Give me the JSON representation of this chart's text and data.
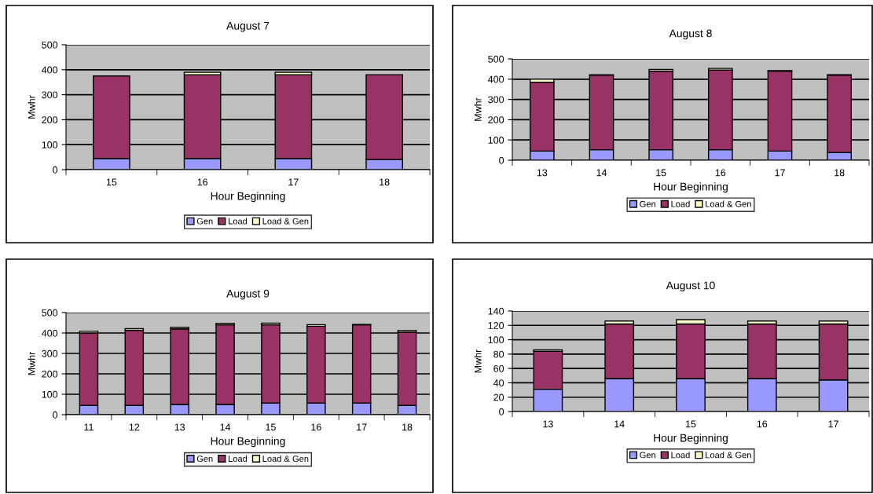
{
  "chart_data": [
    {
      "type": "bar",
      "title": "August 7",
      "xlabel": "Hour Beginning",
      "ylabel": "Mwhr",
      "categories": [
        "15",
        "16",
        "17",
        "18"
      ],
      "stacked": true,
      "ylim": [
        0,
        500
      ],
      "yticks": [
        0,
        100,
        200,
        300,
        400,
        500
      ],
      "grid": "y",
      "legend": "bottom",
      "series": [
        {
          "name": "Gen",
          "color": "#9999ff",
          "values": [
            45,
            45,
            45,
            40
          ]
        },
        {
          "name": "Load",
          "color": "#993366",
          "values": [
            330,
            335,
            335,
            340
          ]
        },
        {
          "name": "Load & Gen",
          "color": "#ffffcc",
          "values": [
            null,
            10,
            10,
            null
          ]
        }
      ]
    },
    {
      "type": "bar",
      "title": "August 8",
      "xlabel": "Hour Beginning",
      "ylabel": "Mwhr",
      "categories": [
        "13",
        "14",
        "15",
        "16",
        "17",
        "18"
      ],
      "stacked": true,
      "ylim": [
        0,
        500
      ],
      "yticks": [
        0,
        100,
        200,
        300,
        400,
        500
      ],
      "grid": "y",
      "legend": "bottom",
      "series": [
        {
          "name": "Gen",
          "color": "#9999ff",
          "values": [
            45,
            52,
            52,
            52,
            45,
            38
          ]
        },
        {
          "name": "Load",
          "color": "#993366",
          "values": [
            340,
            368,
            388,
            393,
            395,
            382
          ]
        },
        {
          "name": "Load & Gen",
          "color": "#ffffcc",
          "values": [
            15,
            2,
            8,
            8,
            2,
            2
          ]
        }
      ]
    },
    {
      "type": "bar",
      "title": "August 9",
      "xlabel": "Hour Beginning",
      "ylabel": "Mwhr",
      "categories": [
        "11",
        "12",
        "13",
        "14",
        "15",
        "16",
        "17",
        "18"
      ],
      "stacked": true,
      "ylim": [
        0,
        500
      ],
      "yticks": [
        0,
        100,
        200,
        300,
        400,
        500
      ],
      "grid": "y",
      "legend": "bottom",
      "series": [
        {
          "name": "Gen",
          "color": "#9999ff",
          "values": [
            45,
            45,
            50,
            50,
            57,
            57,
            57,
            45
          ]
        },
        {
          "name": "Load",
          "color": "#993366",
          "values": [
            355,
            368,
            370,
            390,
            383,
            376,
            383,
            360
          ]
        },
        {
          "name": "Load & Gen",
          "color": "#ffffcc",
          "values": [
            8,
            8,
            8,
            7,
            8,
            8,
            2,
            8
          ]
        }
      ]
    },
    {
      "type": "bar",
      "title": "August 10",
      "xlabel": "Hour Beginning",
      "ylabel": "Mwhr",
      "categories": [
        "13",
        "14",
        "15",
        "16",
        "17"
      ],
      "stacked": true,
      "ylim": [
        0,
        140
      ],
      "yticks": [
        0,
        20,
        40,
        60,
        80,
        100,
        120,
        140
      ],
      "grid": "y",
      "legend": "bottom",
      "series": [
        {
          "name": "Gen",
          "color": "#9999ff",
          "values": [
            31,
            46,
            46,
            46,
            44
          ]
        },
        {
          "name": "Load",
          "color": "#993366",
          "values": [
            53,
            76,
            76,
            76,
            78
          ]
        },
        {
          "name": "Load & Gen",
          "color": "#ffffcc",
          "values": [
            2,
            4,
            6,
            4,
            4
          ]
        }
      ]
    }
  ]
}
